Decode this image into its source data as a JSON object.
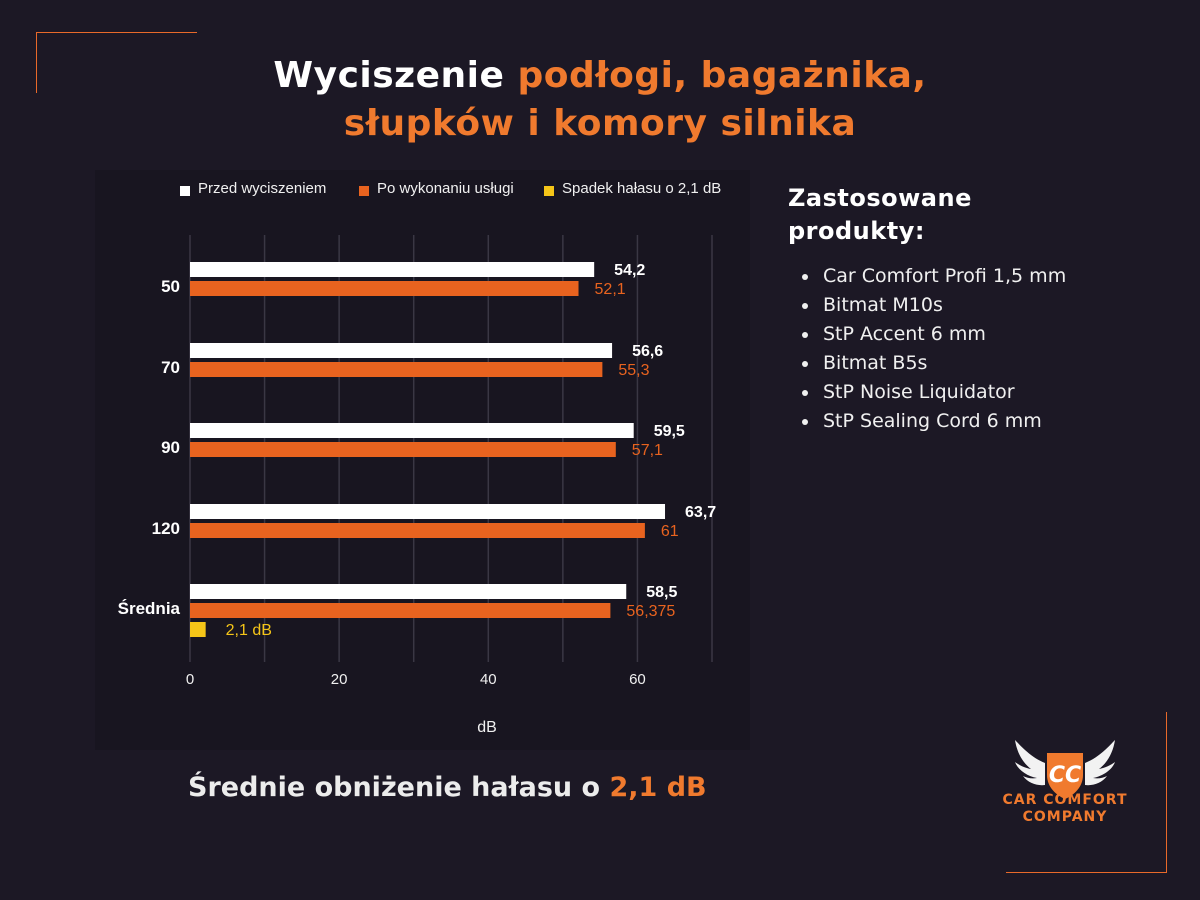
{
  "title": {
    "part1": "Wyciszenie ",
    "part2": "podłogi, bagażnika,",
    "part3": "słupków i komory silnika"
  },
  "colors": {
    "background": "#1c1825",
    "accent": "#f07a2e",
    "before": "#ffffff",
    "after": "#e8631f",
    "drop": "#f5c518"
  },
  "chart_data": {
    "type": "bar",
    "orientation": "horizontal",
    "categories": [
      "50",
      "70",
      "90",
      "120",
      "Średnia"
    ],
    "series": [
      {
        "name": "Przed wyciszeniem",
        "values": [
          54.2,
          56.6,
          59.5,
          63.7,
          58.5
        ],
        "labels": [
          "54,2",
          "56,6",
          "59,5",
          "63,7",
          "58,5"
        ]
      },
      {
        "name": "Po wykonaniu usługi",
        "values": [
          52.1,
          55.3,
          57.1,
          61,
          56.375
        ],
        "labels": [
          "52,1",
          "55,3",
          "57,1",
          "61",
          "56,375"
        ]
      },
      {
        "name": "Spadek hałasu o 2,1 dB",
        "values": [
          null,
          null,
          null,
          null,
          2.1
        ],
        "labels": [
          "",
          "",
          "",
          "",
          "2,1 dB"
        ]
      }
    ],
    "xlabel": "dB",
    "xlim": [
      0,
      70
    ],
    "xticks": [
      0,
      20,
      40,
      60
    ],
    "grid": true,
    "legend": "top"
  },
  "products": {
    "title_line1": "Zastosowane",
    "title_line2": "produkty:",
    "items": [
      "Car Comfort Profi 1,5 mm",
      "Bitmat M10s",
      "StP Accent 6 mm",
      "Bitmat B5s",
      "StP Noise Liquidator",
      "StP Sealing Cord 6 mm"
    ]
  },
  "summary": {
    "text": "Średnie obniżenie hałasu o ",
    "value": "2,1 dB"
  },
  "logo": {
    "monogram": "CC",
    "line1": "CAR COMFORT",
    "line2": "COMPANY"
  }
}
